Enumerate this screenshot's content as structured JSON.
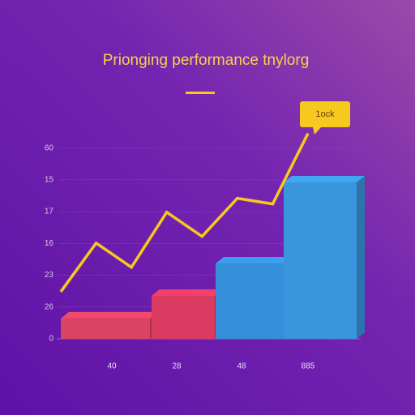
{
  "chart_data": {
    "type": "bar",
    "title": "Prionging performance tnylorg",
    "annotation": "1ock",
    "categories": [
      "40",
      "28",
      "48",
      "885"
    ],
    "values": [
      6.4,
      13.5,
      23.7,
      49.2
    ],
    "colors": [
      "#f24a6c",
      "#f2406a",
      "#3a9ff0",
      "#3fa6f4"
    ],
    "line": {
      "type": "line",
      "color": "#f7c81e",
      "values": [
        14.8,
        30.1,
        22.5,
        39.8,
        32.2,
        44.2,
        42.4,
        64.6
      ]
    },
    "ylim": [
      0,
      65
    ],
    "yticks": [
      0,
      {
        "value": 10,
        "label": "26"
      },
      {
        "value": 20,
        "label": "23"
      },
      {
        "value": 30,
        "label": "16"
      },
      {
        "value": 40,
        "label": "17"
      },
      {
        "value": 50,
        "label": "15"
      },
      60
    ],
    "grid": true
  }
}
